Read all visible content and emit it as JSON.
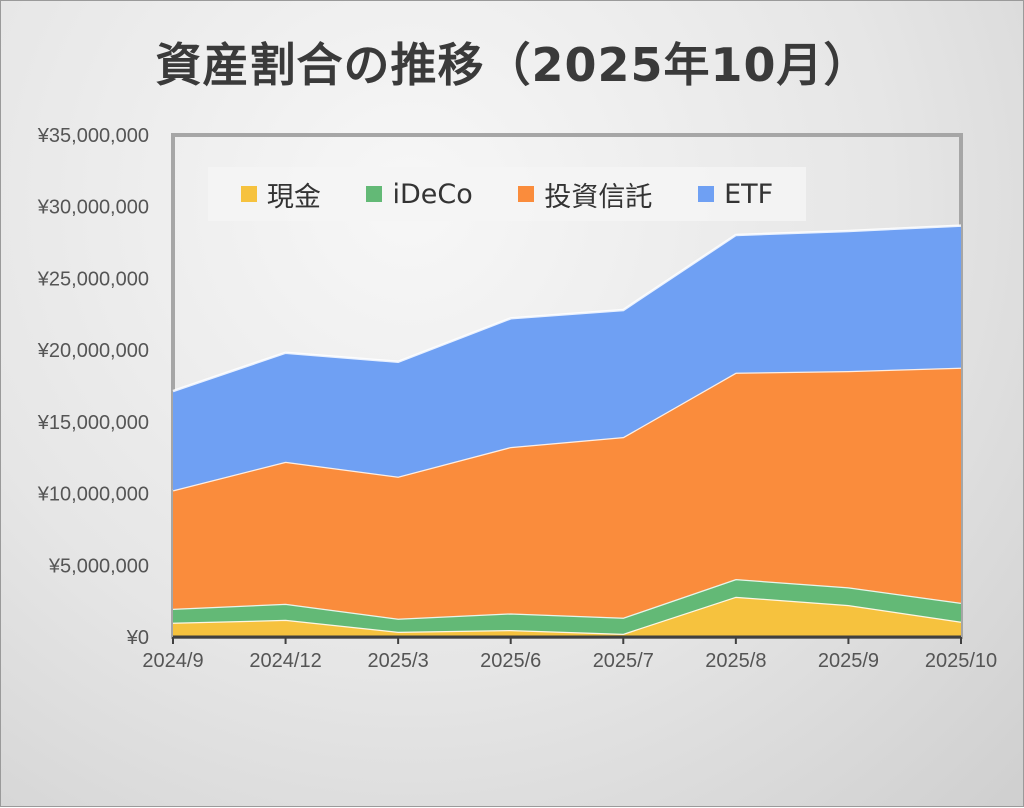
{
  "chart_data": {
    "type": "area",
    "stacked": true,
    "title": "資産割合の推移（2025年10月）",
    "categories": [
      "2024/9",
      "2024/12",
      "2025/3",
      "2025/6",
      "2025/7",
      "2025/8",
      "2025/9",
      "2025/10"
    ],
    "series": [
      {
        "name": "現金",
        "color": "#f6c23e",
        "values": [
          1000000,
          1200000,
          370000,
          490000,
          230000,
          2810000,
          2230000,
          1070000
        ]
      },
      {
        "name": "iDeCo",
        "color": "#63b976",
        "values": [
          970000,
          1120000,
          910000,
          1160000,
          1120000,
          1230000,
          1240000,
          1320000
        ]
      },
      {
        "name": "投資信託",
        "color": "#fa8c3c",
        "values": [
          8260000,
          9900000,
          9900000,
          11600000,
          12590000,
          14390000,
          15080000,
          16390000
        ]
      },
      {
        "name": "ETF",
        "color": "#6fa0f3",
        "values": [
          6920000,
          7600000,
          8010000,
          8970000,
          8860000,
          9600000,
          9760000,
          9900000
        ]
      }
    ],
    "ylim": [
      0,
      35000000
    ],
    "yticks": [
      "¥0",
      "¥5,000,000",
      "¥10,000,000",
      "¥15,000,000",
      "¥20,000,000",
      "¥25,000,000",
      "¥30,000,000",
      "¥35,000,000"
    ],
    "legend": "top",
    "grid": false
  }
}
